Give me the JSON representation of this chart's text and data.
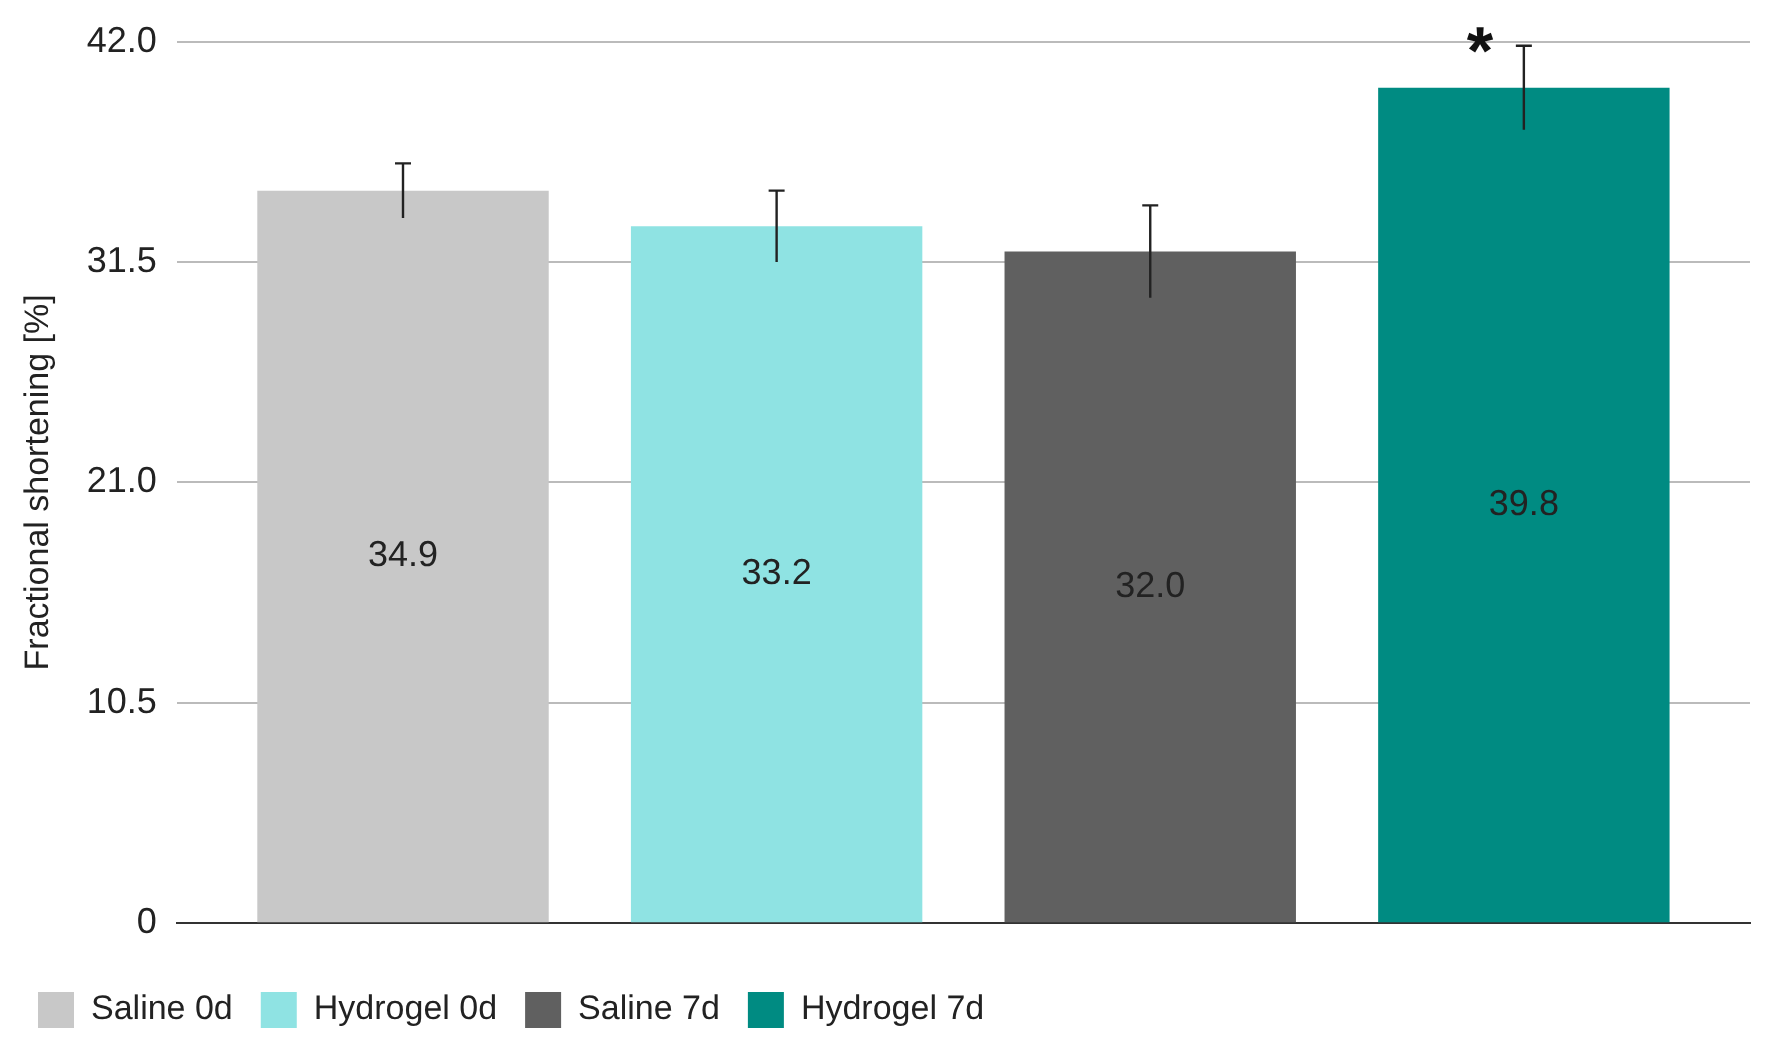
{
  "chart_data": {
    "type": "bar",
    "ylabel": "Fractional shortening [%]",
    "categories": [
      null
    ],
    "series": [
      {
        "name": "Saline 0d",
        "color": "#c8c8c8",
        "values": [
          34.9
        ],
        "value_labels": [
          "34.9"
        ],
        "errors": [
          1.3
        ]
      },
      {
        "name": "Hydrogel 0d",
        "color": "#8fe3e3",
        "values": [
          33.2
        ],
        "value_labels": [
          "33.2"
        ],
        "errors": [
          1.7
        ]
      },
      {
        "name": "Saline 7d",
        "color": "#606060",
        "values": [
          32.0
        ],
        "value_labels": [
          "32.0"
        ],
        "errors": [
          2.2
        ]
      },
      {
        "name": "Hydrogel 7d",
        "color": "#008b82",
        "values": [
          39.8
        ],
        "value_labels": [
          "39.8"
        ],
        "errors": [
          2.0
        ]
      }
    ],
    "ylim": [
      0,
      42
    ],
    "yticks": [
      {
        "value": 0,
        "label": "0"
      },
      {
        "value": 10.5,
        "label": "10.5"
      },
      {
        "value": 21,
        "label": "21.0"
      },
      {
        "value": 31.5,
        "label": "31.5"
      },
      {
        "value": 42,
        "label": "42.0"
      }
    ],
    "grid": "y",
    "legend": "bottom",
    "annotations": [
      "*"
    ]
  }
}
